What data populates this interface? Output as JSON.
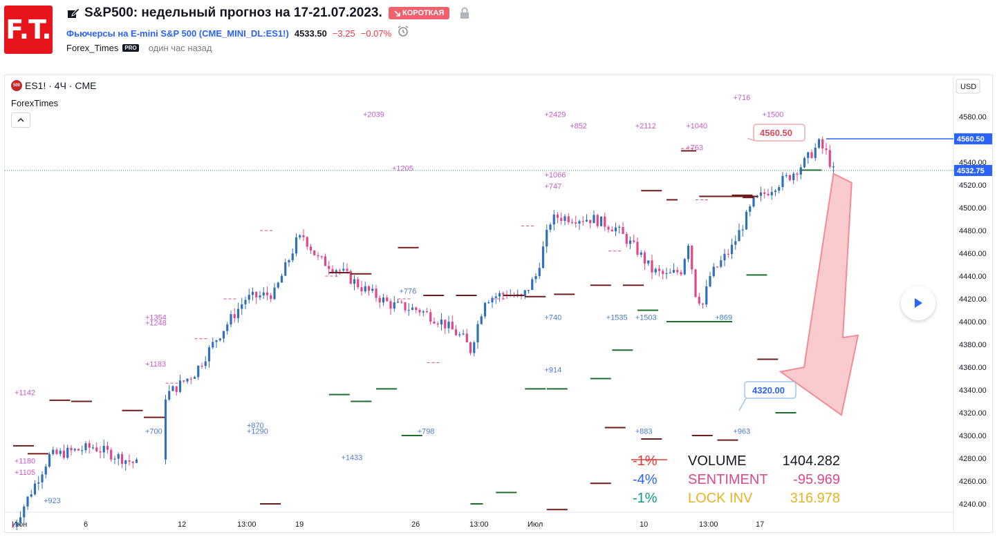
{
  "header": {
    "title": "S&P500: недельный прогноз на 17-21.07.2023.",
    "badge": "КОРОТКАЯ",
    "symbol_name": "Фьючерсы на E-mini S&P 500",
    "symbol_code": "CME_MINI_DL:ES1!",
    "price": "4533.50",
    "change": "−3.25",
    "change_pct": "−0.07%",
    "author": "Forex_Times",
    "pro_badge": "PRO",
    "time_ago": "один час назад",
    "logo_text": "F.T."
  },
  "chart_legend": {
    "symbol": "ES1! · 4Ч · CME",
    "symbol_icon_text": "500",
    "indicator": "ForexTimes"
  },
  "colors": {
    "accent": "#2962ff",
    "up": "#2f6fbd",
    "down": "#e0468a",
    "badge_short": "#f0616d"
  },
  "chart_data": {
    "type": "candlestick",
    "currency": "USD",
    "y_axis_ticks": [
      "4580.00",
      "4560.00",
      "4540.00",
      "4520.00",
      "4500.00",
      "4480.00",
      "4460.00",
      "4440.00",
      "4420.00",
      "4400.00",
      "4380.00",
      "4360.00",
      "4340.00",
      "4320.00",
      "4300.00",
      "4280.00",
      "4260.00",
      "4240.00"
    ],
    "ylim": [
      4230,
      4600
    ],
    "x_axis_ticks": [
      "Июн",
      "6",
      "12",
      "13:00",
      "19",
      "26",
      "13:00",
      "Июл",
      "10",
      "13:00",
      "17"
    ],
    "price_labels": {
      "high_line": "4560.50",
      "current": "4532.75"
    },
    "annotations": {
      "high_callout": "4560.50",
      "target_callout": "4320.00"
    },
    "volume_labels": [
      {
        "text": "+2039",
        "price": 4582,
        "bar": 96,
        "c": "m"
      },
      {
        "text": "+2429",
        "price": 4582,
        "bar": 146,
        "c": "m"
      },
      {
        "text": "+716",
        "price": 4597,
        "bar": 198,
        "c": "m"
      },
      {
        "text": "+1500",
        "price": 4582,
        "bar": 206,
        "c": "m"
      },
      {
        "text": "+852",
        "price": 4572,
        "bar": 153,
        "c": "m"
      },
      {
        "text": "+2112",
        "price": 4572,
        "bar": 171,
        "c": "m"
      },
      {
        "text": "+1040",
        "price": 4572,
        "bar": 185,
        "c": "m"
      },
      {
        "text": "+763",
        "price": 4553,
        "bar": 185,
        "c": "m"
      },
      {
        "text": "+1205",
        "price": 4535,
        "bar": 104,
        "c": "m"
      },
      {
        "text": "+1066",
        "price": 4529,
        "bar": 146,
        "c": "m"
      },
      {
        "text": "+747",
        "price": 4519,
        "bar": 146,
        "c": "m"
      },
      {
        "text": "+776",
        "price": 4427,
        "bar": 106,
        "c": "b"
      },
      {
        "text": "+1354",
        "price": 4404,
        "bar": 36,
        "c": "m"
      },
      {
        "text": "+1248",
        "price": 4399,
        "bar": 36,
        "c": "m"
      },
      {
        "text": "+740",
        "price": 4404,
        "bar": 146,
        "c": "b"
      },
      {
        "text": "+1535",
        "price": 4404,
        "bar": 163,
        "c": "b"
      },
      {
        "text": "+1503",
        "price": 4404,
        "bar": 171,
        "c": "b"
      },
      {
        "text": "+869",
        "price": 4404,
        "bar": 193,
        "c": "b"
      },
      {
        "text": "+1183",
        "price": 4363,
        "bar": 36,
        "c": "m"
      },
      {
        "text": "+914",
        "price": 4358,
        "bar": 146,
        "c": "b"
      },
      {
        "text": "+1142",
        "price": 4338,
        "bar": 0,
        "c": "m"
      },
      {
        "text": "+870",
        "price": 4309,
        "bar": 64,
        "c": "b"
      },
      {
        "text": "+1290",
        "price": 4304,
        "bar": 64,
        "c": "b"
      },
      {
        "text": "+700",
        "price": 4304,
        "bar": 36,
        "c": "b"
      },
      {
        "text": "+798",
        "price": 4304,
        "bar": 111,
        "c": "b"
      },
      {
        "text": "+883",
        "price": 4304,
        "bar": 171,
        "c": "b"
      },
      {
        "text": "+963",
        "price": 4304,
        "bar": 198,
        "c": "b"
      },
      {
        "text": "+1433",
        "price": 4281,
        "bar": 90,
        "c": "b"
      },
      {
        "text": "+1180",
        "price": 4278,
        "bar": 0,
        "c": "m"
      },
      {
        "text": "+1105",
        "price": 4268,
        "bar": 0,
        "c": "m"
      },
      {
        "text": "+923",
        "price": 4243,
        "bar": 8,
        "c": "b"
      }
    ],
    "stats": [
      {
        "pct": "-1%",
        "pct_color": "#e53935",
        "label": "VOLUME",
        "label_color": "#131722",
        "value": "1404.282",
        "value_color": "#131722"
      },
      {
        "pct": "-4%",
        "pct_color": "#2962ff",
        "label": "SENTIMENT",
        "label_color": "#e0468a",
        "value": "-95.969",
        "value_color": "#e0468a"
      },
      {
        "pct": "-1%",
        "pct_color": "#089981",
        "label": "LOCK INV",
        "label_color": "#e6b422",
        "value": "316.978",
        "value_color": "#e6b422"
      }
    ]
  }
}
